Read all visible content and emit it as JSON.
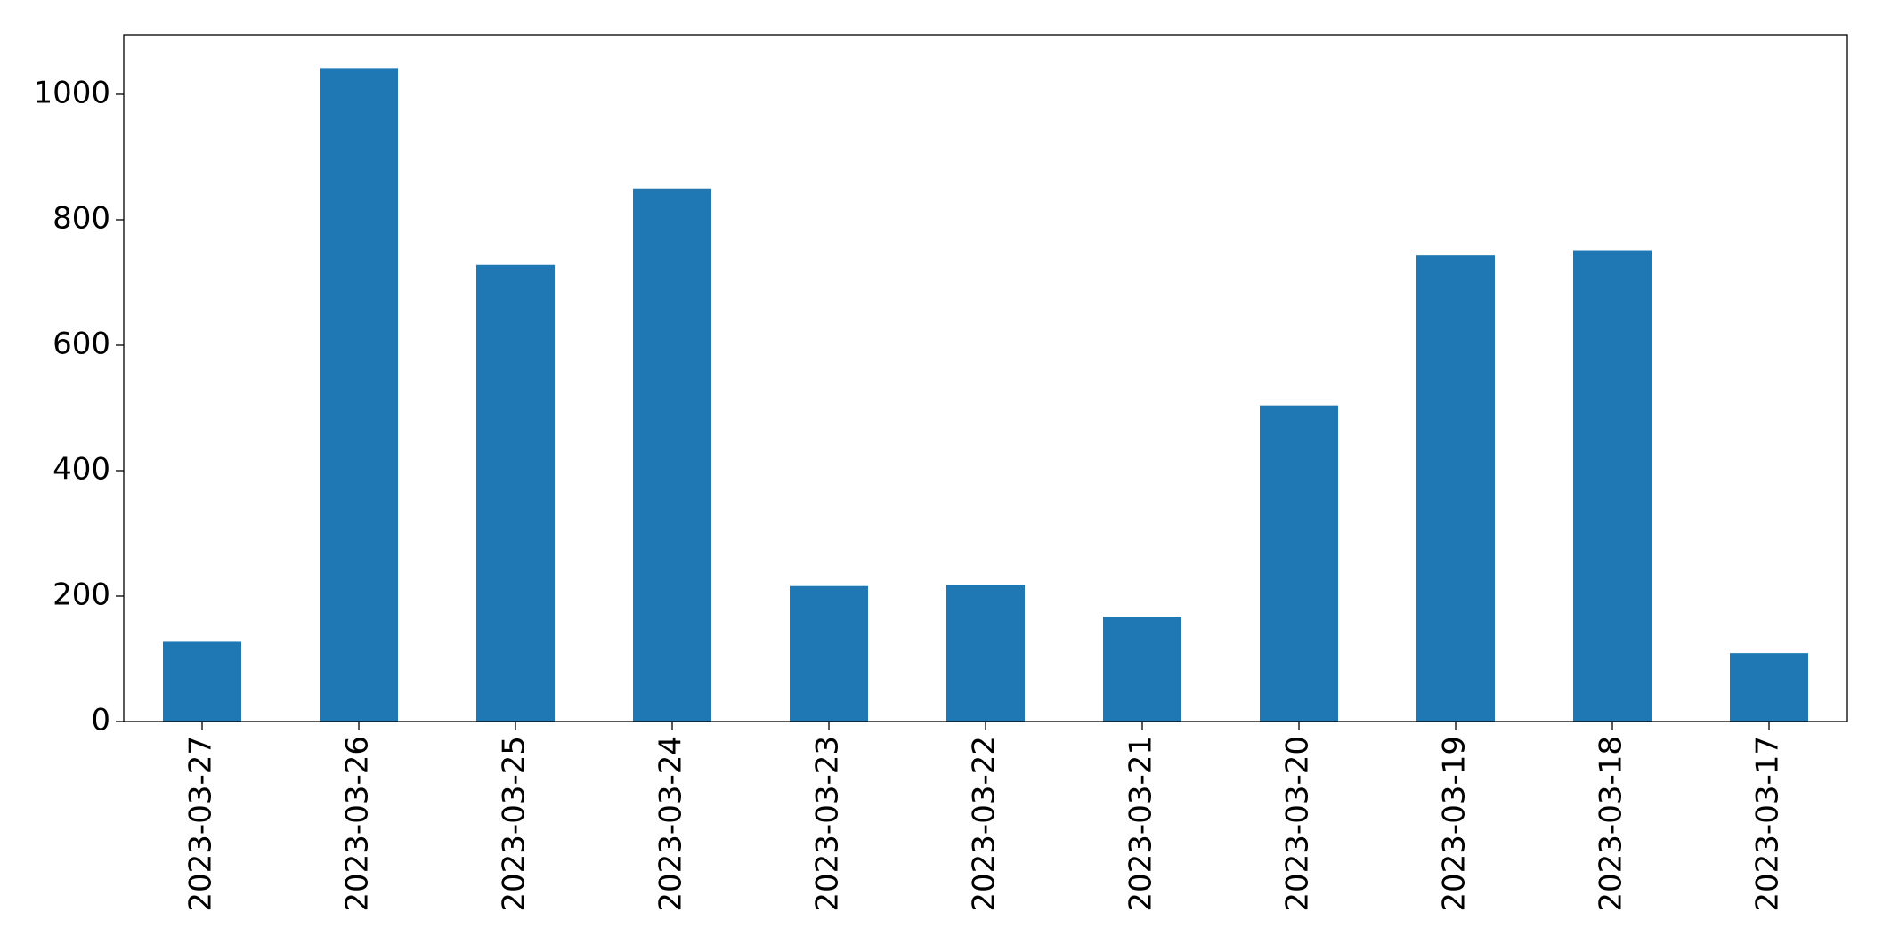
{
  "chart_data": {
    "type": "bar",
    "categories": [
      "2023-03-27",
      "2023-03-26",
      "2023-03-25",
      "2023-03-24",
      "2023-03-23",
      "2023-03-22",
      "2023-03-21",
      "2023-03-20",
      "2023-03-19",
      "2023-03-18",
      "2023-03-17"
    ],
    "values": [
      127,
      1042,
      728,
      850,
      216,
      218,
      167,
      504,
      743,
      751,
      109
    ],
    "color": "#1f77b4",
    "ylim": [
      0,
      1095
    ],
    "yticks": [
      0,
      200,
      400,
      600,
      800,
      1000
    ],
    "grid": false
  }
}
